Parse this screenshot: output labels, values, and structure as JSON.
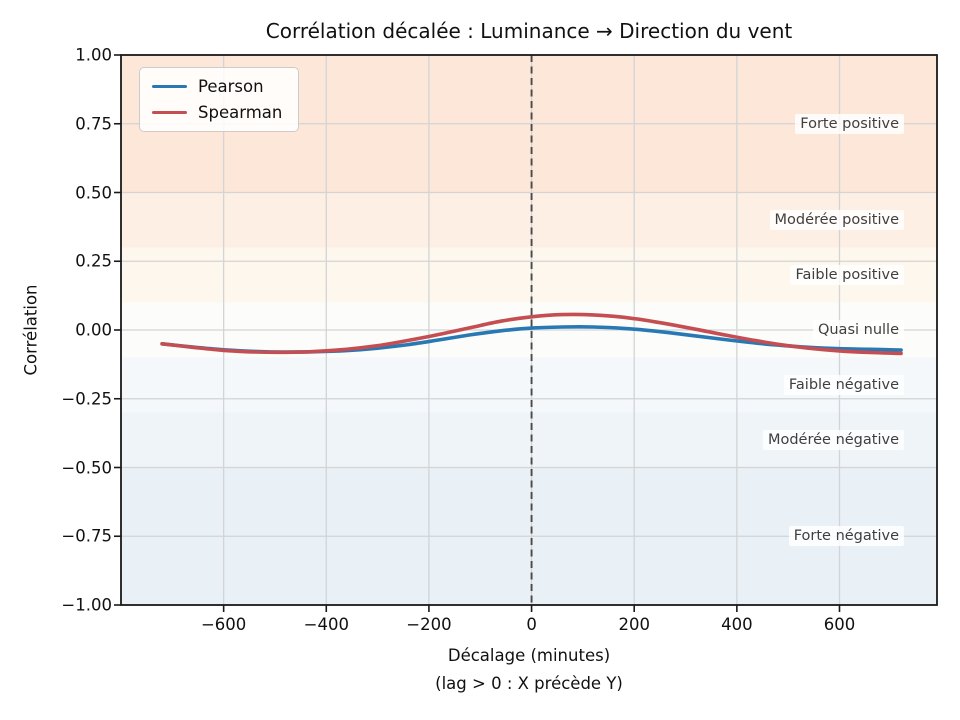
{
  "chart_data": {
    "type": "line",
    "title": "Corrélation décalée : Luminance → Direction du vent",
    "ylabel": "Corrélation",
    "xlabel": "Décalage (minutes)",
    "xlabel_line2": "(lag > 0 : X précède Y)",
    "xlim": [
      -800,
      790
    ],
    "ylim": [
      -1.0,
      1.0
    ],
    "grid": true,
    "legend_position": "upper-left",
    "vline_x": 0,
    "x_ticks": [
      -600,
      -400,
      -200,
      0,
      200,
      400,
      600
    ],
    "x_tick_labels": [
      "−600",
      "−400",
      "−200",
      "0",
      "200",
      "400",
      "600"
    ],
    "y_ticks": [
      1.0,
      0.75,
      0.5,
      0.25,
      0.0,
      -0.25,
      -0.5,
      -0.75,
      -1.0
    ],
    "y_tick_labels": [
      "1.00",
      "0.75",
      "0.50",
      "0.25",
      "0.00",
      "−0.25",
      "−0.50",
      "−0.75",
      "−1.00"
    ],
    "x": [
      -720,
      -660,
      -600,
      -540,
      -480,
      -420,
      -360,
      -300,
      -240,
      -180,
      -120,
      -60,
      0,
      60,
      120,
      180,
      240,
      300,
      360,
      420,
      480,
      540,
      600,
      660,
      720
    ],
    "series": [
      {
        "name": "Pearson",
        "color": "#2878b4",
        "values": [
          -0.05,
          -0.062,
          -0.072,
          -0.078,
          -0.08,
          -0.079,
          -0.075,
          -0.066,
          -0.053,
          -0.036,
          -0.018,
          -0.003,
          0.007,
          0.011,
          0.011,
          0.006,
          -0.004,
          -0.017,
          -0.031,
          -0.044,
          -0.055,
          -0.063,
          -0.068,
          -0.07,
          -0.073
        ]
      },
      {
        "name": "Spearman",
        "color": "#c44e52",
        "values": [
          -0.05,
          -0.063,
          -0.074,
          -0.08,
          -0.081,
          -0.078,
          -0.07,
          -0.057,
          -0.038,
          -0.016,
          0.008,
          0.032,
          0.048,
          0.056,
          0.055,
          0.046,
          0.03,
          0.01,
          -0.012,
          -0.033,
          -0.052,
          -0.066,
          -0.076,
          -0.082,
          -0.085
        ]
      }
    ],
    "bands": [
      {
        "label": "Forte positive",
        "from": 0.5,
        "to": 1.0,
        "color": "#fce7d9"
      },
      {
        "label": "Modérée positive",
        "from": 0.3,
        "to": 0.5,
        "color": "#fdefe3"
      },
      {
        "label": "Faible positive",
        "from": 0.1,
        "to": 0.3,
        "color": "#fef7ee"
      },
      {
        "label": "Quasi nulle",
        "from": -0.1,
        "to": 0.1,
        "color": "#fcfcfa"
      },
      {
        "label": "Faible négative",
        "from": -0.3,
        "to": -0.1,
        "color": "#f4f8fb"
      },
      {
        "label": "Modérée négative",
        "from": -0.5,
        "to": -0.3,
        "color": "#eef4f8"
      },
      {
        "label": "Forte négative",
        "from": -1.0,
        "to": -0.5,
        "color": "#e9f0f6"
      }
    ],
    "colors": {
      "grid": "#d2d4d6",
      "vline": "#4a4a4a",
      "spine": "#1a1a1a",
      "band_label_text": "#3f3f3f"
    }
  }
}
